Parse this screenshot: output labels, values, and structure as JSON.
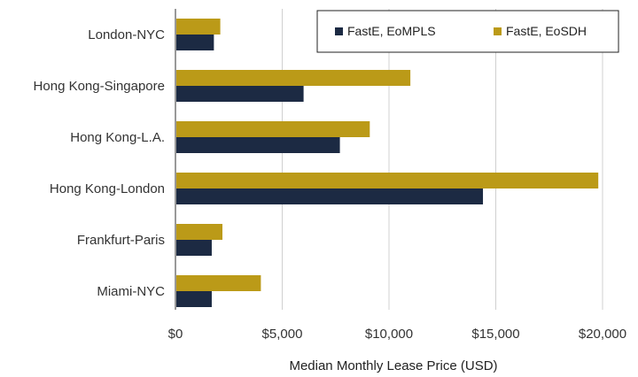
{
  "chart_data": {
    "type": "bar",
    "orientation": "horizontal",
    "title": "",
    "categories": [
      "London-NYC",
      "Hong Kong-Singapore",
      "Hong Kong-L.A.",
      "Hong Kong-London",
      "Frankfurt-Paris",
      "Miami-NYC"
    ],
    "series": [
      {
        "name": "FastE, EoMPLS",
        "color": "#1c2a43",
        "values": [
          1800,
          6000,
          7700,
          14400,
          1700,
          1700
        ]
      },
      {
        "name": "FastE, EoSDH",
        "color": "#bb9a18",
        "values": [
          2100,
          11000,
          9100,
          19800,
          2200,
          4000
        ]
      }
    ],
    "xlabel": "Median Monthly Lease Price (USD)",
    "ylabel": "",
    "xlim": [
      0,
      20000
    ],
    "xticks": [
      0,
      5000,
      10000,
      15000,
      20000
    ],
    "xtick_labels": [
      "$0",
      "$5,000",
      "$10,000",
      "$15,000",
      "$20,000"
    ],
    "grid": "vertical",
    "legend": "top-right"
  }
}
